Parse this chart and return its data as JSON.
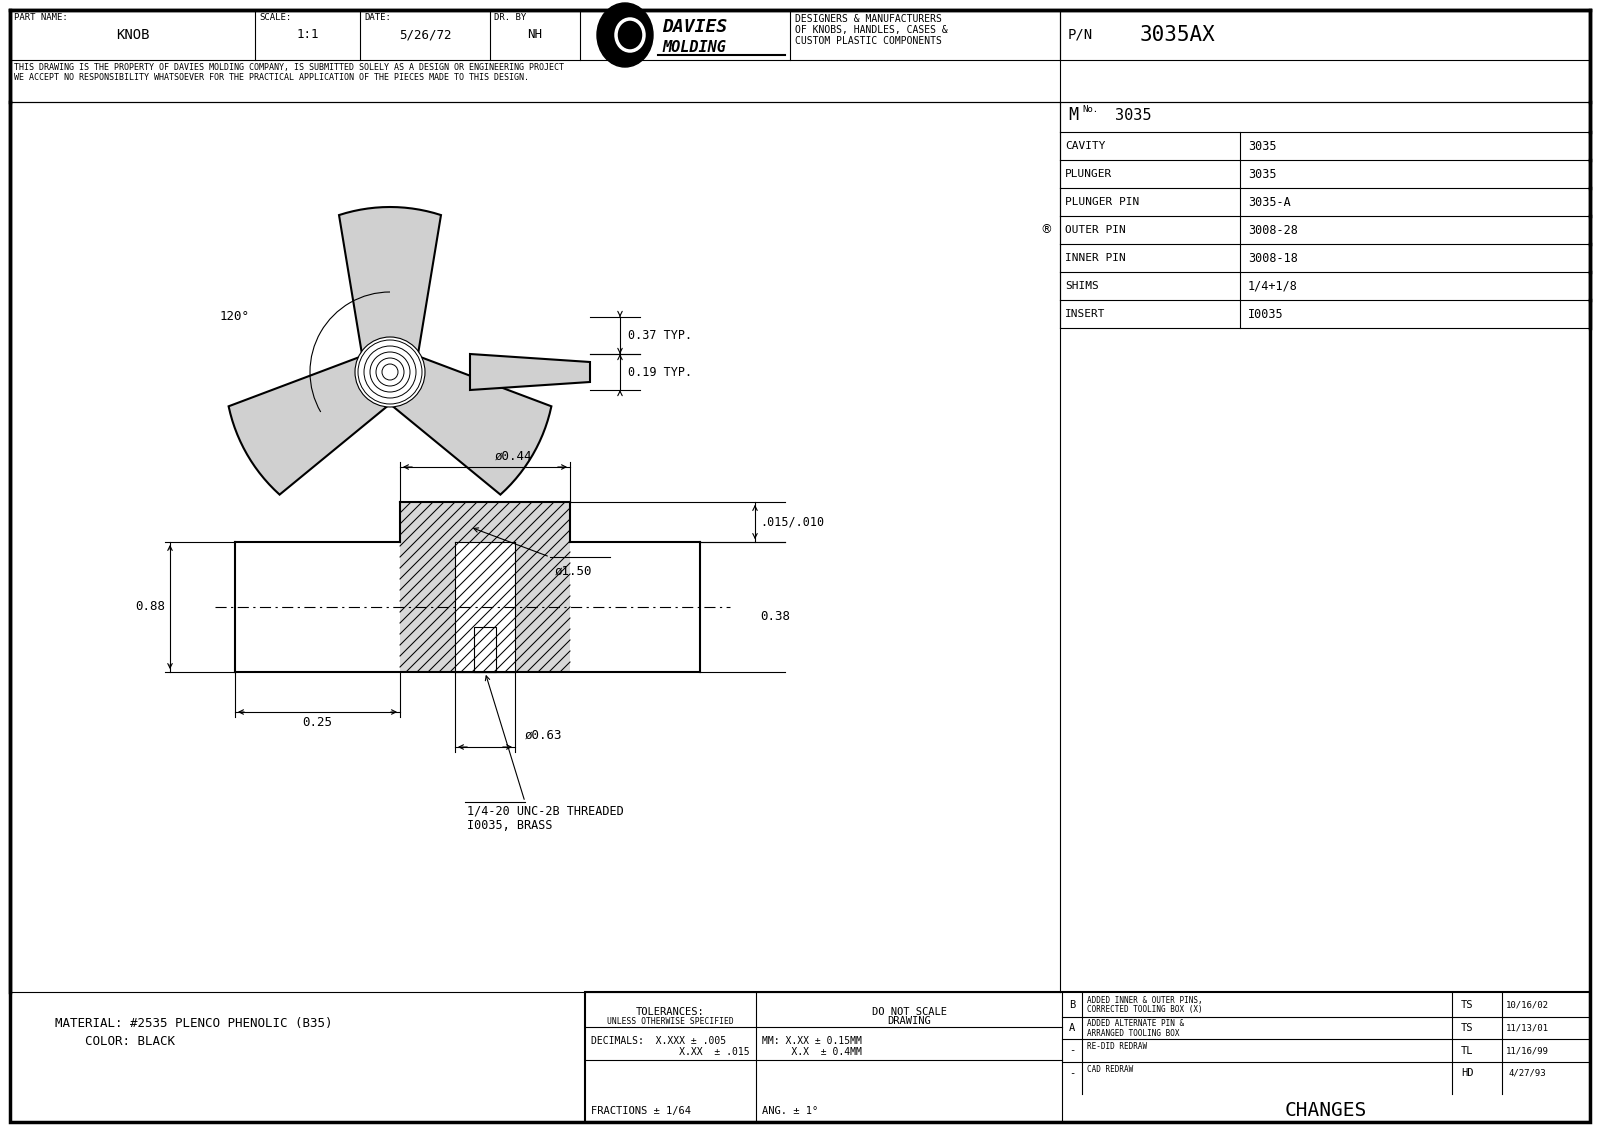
{
  "bg_color": "#ffffff",
  "line_color": "#000000",
  "title_block": {
    "part_name": "KNOB",
    "scale": "1:1",
    "date": "5/26/72",
    "dr_by": "NH",
    "pn": "3035AX",
    "mold_no": "3035",
    "cavity": "3035",
    "plunger": "3035",
    "plunger_pin": "3035-A",
    "outer_pin": "3008-28",
    "inner_pin": "3008-18",
    "shims": "1/4+1/8",
    "insert": "I0035"
  },
  "davies_text1": "DESIGNERS & MANUFACTURERS",
  "davies_text2": "OF KNOBS, HANDLES, CASES &",
  "davies_text3": "CUSTOM PLASTIC COMPONENTS",
  "disclaimer": "THIS DRAWING IS THE PROPERTY OF DAVIES MOLDING COMPANY, IS SUBMITTED SOLELY AS A DESIGN OR ENGINEERING PROJECT\nWE ACCEPT NO RESPONSIBILITY WHATSOEVER FOR THE PRACTICAL APPLICATION OF THE PIECES MADE TO THIS DESIGN.",
  "changes": [
    {
      "rev": "B",
      "desc1": "ADDED INNER & OUTER PINS,",
      "desc2": "CORRECTED TOOLING BOX (X)",
      "by": "TS",
      "date": "10/16/02"
    },
    {
      "rev": "A",
      "desc1": "ADDED ALTERNATE PIN &",
      "desc2": "ARRANGED TOOLING BOX",
      "by": "TS",
      "date": "11/13/01"
    },
    {
      "rev": "-",
      "desc1": "RE-DID REDRAW",
      "desc2": "",
      "by": "TL",
      "date": "11/16/99"
    },
    {
      "rev": "-",
      "desc1": "CAD REDRAW",
      "desc2": "",
      "by": "HD",
      "date": "4/27/93"
    }
  ]
}
